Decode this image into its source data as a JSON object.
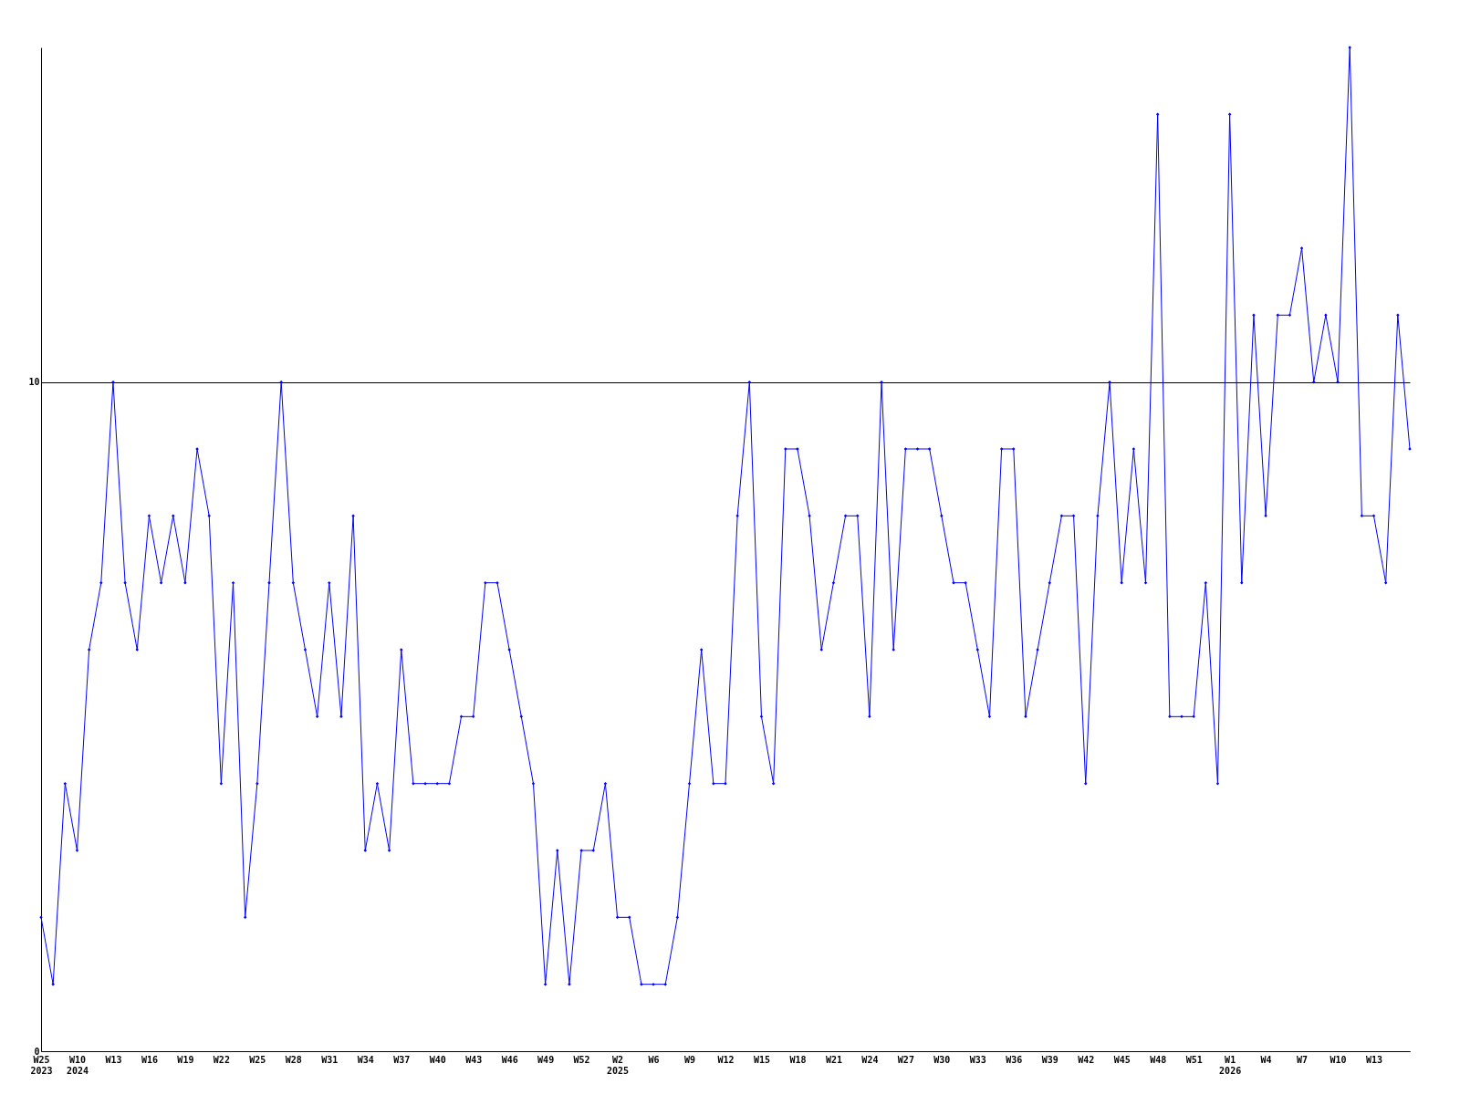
{
  "chart_data": {
    "type": "line",
    "categories": [
      "W25\n2023",
      null,
      null,
      "W10\n2024",
      null,
      null,
      "W13",
      null,
      null,
      "W16",
      null,
      null,
      "W19",
      null,
      null,
      "W22",
      null,
      null,
      "W25",
      null,
      null,
      "W28",
      null,
      null,
      "W31",
      null,
      null,
      "W34",
      null,
      null,
      "W37",
      null,
      null,
      "W40",
      null,
      null,
      "W43",
      null,
      null,
      "W46",
      null,
      null,
      "W49",
      null,
      null,
      "W52",
      null,
      null,
      "W2\n2025",
      null,
      null,
      "W6",
      null,
      null,
      "W9",
      null,
      null,
      "W12",
      null,
      null,
      "W15",
      null,
      null,
      "W18",
      null,
      null,
      "W21",
      null,
      null,
      "W24",
      null,
      null,
      "W27",
      null,
      null,
      "W30",
      null,
      null,
      "W33",
      null,
      null,
      "W36",
      null,
      null,
      "W39",
      null,
      null,
      "W42",
      null,
      null,
      "W45",
      null,
      null,
      "W48",
      null,
      null,
      "W51",
      null,
      null,
      "W1\n2026",
      null,
      null,
      "W4",
      null,
      null,
      "W7",
      null,
      null,
      "W10",
      null,
      null,
      "W13",
      null,
      null,
      null
    ],
    "series": [
      {
        "color": "#0000ff",
        "values": [
          2,
          1,
          4,
          3,
          6,
          7,
          10,
          7,
          6,
          8,
          7,
          8,
          7,
          9,
          8,
          4,
          7,
          2,
          4,
          7,
          10,
          7,
          6,
          5,
          7,
          5,
          8,
          3,
          4,
          3,
          6,
          4,
          4,
          4,
          4,
          5,
          5,
          7,
          7,
          6,
          5,
          4,
          1,
          3,
          1,
          3,
          3,
          4,
          2,
          2,
          1,
          1,
          1,
          2,
          4,
          6,
          4,
          4,
          8,
          10,
          5,
          4,
          9,
          9,
          8,
          6,
          7,
          8,
          8,
          5,
          10,
          6,
          9,
          9,
          9,
          8,
          7,
          7,
          6,
          5,
          9,
          9,
          5,
          6,
          7,
          8,
          8,
          4,
          8,
          10,
          7,
          9,
          7,
          14,
          5,
          5,
          5,
          7,
          4,
          14,
          7,
          11,
          8,
          11,
          11,
          12,
          10,
          11,
          10,
          15,
          8,
          8,
          7,
          11,
          9
        ]
      }
    ],
    "ylim": [
      0,
      15
    ],
    "yticks": [
      0,
      10
    ],
    "grid": "y",
    "marker": "diamond"
  }
}
